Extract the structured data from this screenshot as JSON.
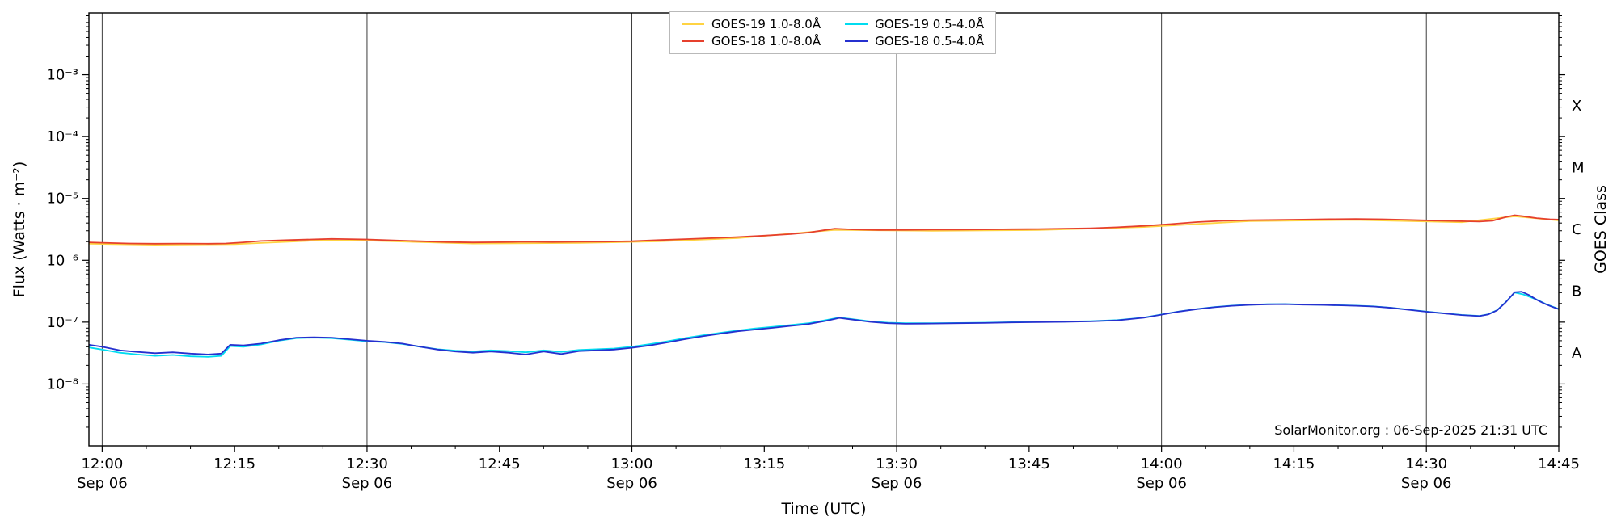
{
  "page": {
    "background": "#ffffff"
  },
  "chart_data": {
    "type": "line",
    "title": "",
    "xlabel": "Time (UTC)",
    "ylabel": "Flux (Watts · m⁻²)",
    "ylabel_right": "GOES Class",
    "annotation": "SolarMonitor.org : 06-Sep-2025 21:31 UTC",
    "legend_position": "top-center",
    "grid": "vertical-only",
    "gridline_color": "#3c3c3c",
    "axis_color": "#000000",
    "x_axis": {
      "start_min": -1.5,
      "end_min": 165,
      "minor_step_min": 5,
      "gridlines_min": [
        0,
        30,
        60,
        90,
        120,
        150
      ],
      "major_ticks": [
        {
          "t": 0,
          "label": "12:00",
          "date": "Sep 06"
        },
        {
          "t": 15,
          "label": "12:15",
          "date": ""
        },
        {
          "t": 30,
          "label": "12:30",
          "date": "Sep 06"
        },
        {
          "t": 45,
          "label": "12:45",
          "date": ""
        },
        {
          "t": 60,
          "label": "13:00",
          "date": "Sep 06"
        },
        {
          "t": 75,
          "label": "13:15",
          "date": ""
        },
        {
          "t": 90,
          "label": "13:30",
          "date": "Sep 06"
        },
        {
          "t": 105,
          "label": "13:45",
          "date": ""
        },
        {
          "t": 120,
          "label": "14:00",
          "date": "Sep 06"
        },
        {
          "t": 135,
          "label": "14:15",
          "date": ""
        },
        {
          "t": 150,
          "label": "14:30",
          "date": "Sep 06"
        },
        {
          "t": 165,
          "label": "14:45",
          "date": ""
        }
      ]
    },
    "y_axis": {
      "scale": "log",
      "log_min_exp": -9,
      "log_max_exp": -2,
      "labeled_exponents": [
        -3,
        -4,
        -5,
        -6,
        -7,
        -8
      ],
      "unit": "Watts per square metre"
    },
    "goes_classes": [
      {
        "label": "X",
        "center_exp": -3.5
      },
      {
        "label": "M",
        "center_exp": -4.5
      },
      {
        "label": "C",
        "center_exp": -5.5
      },
      {
        "label": "B",
        "center_exp": -6.5
      },
      {
        "label": "A",
        "center_exp": -7.5
      }
    ],
    "series": [
      {
        "label": "GOES-19 1.0-8.0Å",
        "color": "#ffd342",
        "points": [
          [
            -1.5,
            1.85e-06
          ],
          [
            6,
            1.78e-06
          ],
          [
            15,
            1.82e-06
          ],
          [
            24,
            2.08e-06
          ],
          [
            30,
            2.08e-06
          ],
          [
            42,
            1.86e-06
          ],
          [
            54,
            1.9e-06
          ],
          [
            63,
            2.02e-06
          ],
          [
            72,
            2.28e-06
          ],
          [
            83,
            3.1e-06
          ],
          [
            94,
            3e-06
          ],
          [
            106,
            3.08e-06
          ],
          [
            118,
            3.45e-06
          ],
          [
            130,
            4.3e-06
          ],
          [
            142,
            4.5e-06
          ],
          [
            154,
            4.12e-06
          ],
          [
            160,
            5.15e-06
          ],
          [
            165,
            4.4e-06
          ]
        ]
      },
      {
        "label": "GOES-18 1.0-8.0Å",
        "color": "#e6402d",
        "points": [
          [
            -1.5,
            1.95e-06
          ],
          [
            0,
            1.92e-06
          ],
          [
            3,
            1.87e-06
          ],
          [
            6,
            1.85e-06
          ],
          [
            9,
            1.86e-06
          ],
          [
            12,
            1.85e-06
          ],
          [
            14,
            1.87e-06
          ],
          [
            16,
            1.95e-06
          ],
          [
            18,
            2.05e-06
          ],
          [
            21,
            2.12e-06
          ],
          [
            24,
            2.18e-06
          ],
          [
            26,
            2.22e-06
          ],
          [
            28,
            2.2e-06
          ],
          [
            30,
            2.17e-06
          ],
          [
            33,
            2.1e-06
          ],
          [
            36,
            2.03e-06
          ],
          [
            39,
            1.97e-06
          ],
          [
            42,
            1.94e-06
          ],
          [
            45,
            1.96e-06
          ],
          [
            48,
            1.99e-06
          ],
          [
            51,
            1.97e-06
          ],
          [
            54,
            1.99e-06
          ],
          [
            57,
            2e-06
          ],
          [
            60,
            2.03e-06
          ],
          [
            63,
            2.12e-06
          ],
          [
            66,
            2.2e-06
          ],
          [
            69,
            2.28e-06
          ],
          [
            72,
            2.38e-06
          ],
          [
            75,
            2.5e-06
          ],
          [
            78,
            2.65e-06
          ],
          [
            80,
            2.8e-06
          ],
          [
            82,
            3.1e-06
          ],
          [
            83,
            3.25e-06
          ],
          [
            85,
            3.15e-06
          ],
          [
            88,
            3.08e-06
          ],
          [
            91,
            3.1e-06
          ],
          [
            94,
            3.12e-06
          ],
          [
            97,
            3.13e-06
          ],
          [
            100,
            3.15e-06
          ],
          [
            103,
            3.18e-06
          ],
          [
            106,
            3.2e-06
          ],
          [
            109,
            3.25e-06
          ],
          [
            112,
            3.3e-06
          ],
          [
            115,
            3.42e-06
          ],
          [
            118,
            3.6e-06
          ],
          [
            121,
            3.85e-06
          ],
          [
            124,
            4.15e-06
          ],
          [
            127,
            4.35e-06
          ],
          [
            130,
            4.45e-06
          ],
          [
            133,
            4.5e-06
          ],
          [
            136,
            4.55e-06
          ],
          [
            139,
            4.62e-06
          ],
          [
            142,
            4.65e-06
          ],
          [
            145,
            4.6e-06
          ],
          [
            148,
            4.5e-06
          ],
          [
            151,
            4.38e-06
          ],
          [
            154,
            4.28e-06
          ],
          [
            156,
            4.22e-06
          ],
          [
            157.5,
            4.35e-06
          ],
          [
            159,
            5e-06
          ],
          [
            160,
            5.35e-06
          ],
          [
            161,
            5.15e-06
          ],
          [
            162.5,
            4.8e-06
          ],
          [
            164,
            4.6e-06
          ],
          [
            165,
            4.55e-06
          ]
        ]
      },
      {
        "label": "GOES-19 0.5-4.0Å",
        "color": "#00dcf0",
        "points": [
          [
            -1.5,
            3.9e-08
          ],
          [
            0,
            3.6e-08
          ],
          [
            2,
            3.2e-08
          ],
          [
            4,
            3e-08
          ],
          [
            6,
            2.85e-08
          ],
          [
            8,
            2.95e-08
          ],
          [
            10,
            2.8e-08
          ],
          [
            12,
            2.75e-08
          ],
          [
            13.5,
            2.85e-08
          ],
          [
            14.5,
            4.1e-08
          ],
          [
            16,
            4e-08
          ],
          [
            18,
            4.35e-08
          ],
          [
            20,
            5e-08
          ],
          [
            22,
            5.5e-08
          ],
          [
            24,
            5.6e-08
          ],
          [
            26,
            5.5e-08
          ],
          [
            28,
            5.2e-08
          ],
          [
            30,
            4.9e-08
          ],
          [
            32,
            4.75e-08
          ],
          [
            34,
            4.45e-08
          ],
          [
            36,
            4e-08
          ],
          [
            38,
            3.65e-08
          ],
          [
            40,
            3.45e-08
          ],
          [
            42,
            3.35e-08
          ],
          [
            44,
            3.5e-08
          ],
          [
            46,
            3.4e-08
          ],
          [
            48,
            3.25e-08
          ],
          [
            50,
            3.5e-08
          ],
          [
            52,
            3.3e-08
          ],
          [
            54,
            3.55e-08
          ],
          [
            56,
            3.65e-08
          ],
          [
            58,
            3.75e-08
          ],
          [
            60,
            4e-08
          ],
          [
            62,
            4.4e-08
          ],
          [
            64,
            4.9e-08
          ],
          [
            66,
            5.5e-08
          ],
          [
            68,
            6.1e-08
          ],
          [
            70,
            6.7e-08
          ],
          [
            72,
            7.3e-08
          ],
          [
            74,
            7.9e-08
          ],
          [
            76,
            8.4e-08
          ],
          [
            78,
            9e-08
          ],
          [
            80,
            9.6e-08
          ],
          [
            82,
            1.08e-07
          ],
          [
            83.5,
            1.19e-07
          ],
          [
            85,
            1.12e-07
          ],
          [
            87,
            1.03e-07
          ],
          [
            89,
            9.8e-08
          ],
          [
            91,
            9.6e-08
          ],
          [
            94,
            9.6e-08
          ],
          [
            97,
            9.7e-08
          ],
          [
            100,
            9.8e-08
          ],
          [
            103,
            1e-07
          ],
          [
            106,
            1.01e-07
          ],
          [
            109,
            1.02e-07
          ],
          [
            112,
            1.04e-07
          ],
          [
            115,
            1.08e-07
          ],
          [
            118,
            1.19e-07
          ],
          [
            120,
            1.33e-07
          ],
          [
            122,
            1.49e-07
          ],
          [
            124,
            1.63e-07
          ],
          [
            126,
            1.75e-07
          ],
          [
            128,
            1.85e-07
          ],
          [
            130,
            1.91e-07
          ],
          [
            132,
            1.95e-07
          ],
          [
            134,
            1.96e-07
          ],
          [
            136,
            1.93e-07
          ],
          [
            138,
            1.91e-07
          ],
          [
            140,
            1.88e-07
          ],
          [
            142,
            1.85e-07
          ],
          [
            144,
            1.8e-07
          ],
          [
            146,
            1.71e-07
          ],
          [
            148,
            1.59e-07
          ],
          [
            150,
            1.48e-07
          ],
          [
            152,
            1.39e-07
          ],
          [
            154,
            1.31e-07
          ],
          [
            156,
            1.26e-07
          ],
          [
            157,
            1.34e-07
          ],
          [
            158,
            1.56e-07
          ],
          [
            159,
            2.12e-07
          ],
          [
            160,
            3e-07
          ],
          [
            161,
            2.8e-07
          ],
          [
            162.5,
            2.32e-07
          ],
          [
            163.5,
            1.97e-07
          ],
          [
            165,
            1.63e-07
          ]
        ]
      },
      {
        "label": "GOES-18 0.5-4.0Å",
        "color": "#2530cf",
        "points": [
          [
            -1.5,
            4.3e-08
          ],
          [
            0,
            4e-08
          ],
          [
            2,
            3.5e-08
          ],
          [
            4,
            3.3e-08
          ],
          [
            6,
            3.15e-08
          ],
          [
            8,
            3.25e-08
          ],
          [
            10,
            3.1e-08
          ],
          [
            12,
            3e-08
          ],
          [
            13.5,
            3.1e-08
          ],
          [
            14.5,
            4.3e-08
          ],
          [
            16,
            4.2e-08
          ],
          [
            18,
            4.5e-08
          ],
          [
            20,
            5.1e-08
          ],
          [
            22,
            5.6e-08
          ],
          [
            24,
            5.7e-08
          ],
          [
            26,
            5.6e-08
          ],
          [
            28,
            5.3e-08
          ],
          [
            30,
            5e-08
          ],
          [
            32,
            4.8e-08
          ],
          [
            34,
            4.5e-08
          ],
          [
            36,
            4e-08
          ],
          [
            38,
            3.6e-08
          ],
          [
            40,
            3.35e-08
          ],
          [
            42,
            3.2e-08
          ],
          [
            44,
            3.35e-08
          ],
          [
            46,
            3.2e-08
          ],
          [
            48,
            3e-08
          ],
          [
            50,
            3.35e-08
          ],
          [
            52,
            3.05e-08
          ],
          [
            54,
            3.4e-08
          ],
          [
            56,
            3.5e-08
          ],
          [
            58,
            3.6e-08
          ],
          [
            60,
            3.85e-08
          ],
          [
            62,
            4.2e-08
          ],
          [
            64,
            4.7e-08
          ],
          [
            66,
            5.3e-08
          ],
          [
            68,
            5.9e-08
          ],
          [
            70,
            6.5e-08
          ],
          [
            72,
            7.1e-08
          ],
          [
            74,
            7.6e-08
          ],
          [
            76,
            8.1e-08
          ],
          [
            78,
            8.7e-08
          ],
          [
            80,
            9.3e-08
          ],
          [
            82,
            1.05e-07
          ],
          [
            83.5,
            1.17e-07
          ],
          [
            85,
            1.1e-07
          ],
          [
            87,
            1.01e-07
          ],
          [
            89,
            9.6e-08
          ],
          [
            91,
            9.4e-08
          ],
          [
            94,
            9.5e-08
          ],
          [
            97,
            9.6e-08
          ],
          [
            100,
            9.7e-08
          ],
          [
            103,
            9.9e-08
          ],
          [
            106,
            1e-07
          ],
          [
            109,
            1.01e-07
          ],
          [
            112,
            1.03e-07
          ],
          [
            115,
            1.07e-07
          ],
          [
            118,
            1.18e-07
          ],
          [
            120,
            1.32e-07
          ],
          [
            122,
            1.48e-07
          ],
          [
            124,
            1.62e-07
          ],
          [
            126,
            1.74e-07
          ],
          [
            128,
            1.84e-07
          ],
          [
            130,
            1.9e-07
          ],
          [
            132,
            1.94e-07
          ],
          [
            134,
            1.95e-07
          ],
          [
            136,
            1.92e-07
          ],
          [
            138,
            1.9e-07
          ],
          [
            140,
            1.87e-07
          ],
          [
            142,
            1.84e-07
          ],
          [
            144,
            1.79e-07
          ],
          [
            146,
            1.7e-07
          ],
          [
            148,
            1.58e-07
          ],
          [
            150,
            1.47e-07
          ],
          [
            152,
            1.38e-07
          ],
          [
            154,
            1.3e-07
          ],
          [
            156,
            1.25e-07
          ],
          [
            157,
            1.33e-07
          ],
          [
            158,
            1.55e-07
          ],
          [
            159,
            2.1e-07
          ],
          [
            160,
            3.05e-07
          ],
          [
            160.8,
            3.1e-07
          ],
          [
            161.6,
            2.75e-07
          ],
          [
            162.5,
            2.3e-07
          ],
          [
            163.5,
            1.95e-07
          ],
          [
            164.2,
            1.78e-07
          ],
          [
            165,
            1.62e-07
          ]
        ]
      }
    ]
  }
}
